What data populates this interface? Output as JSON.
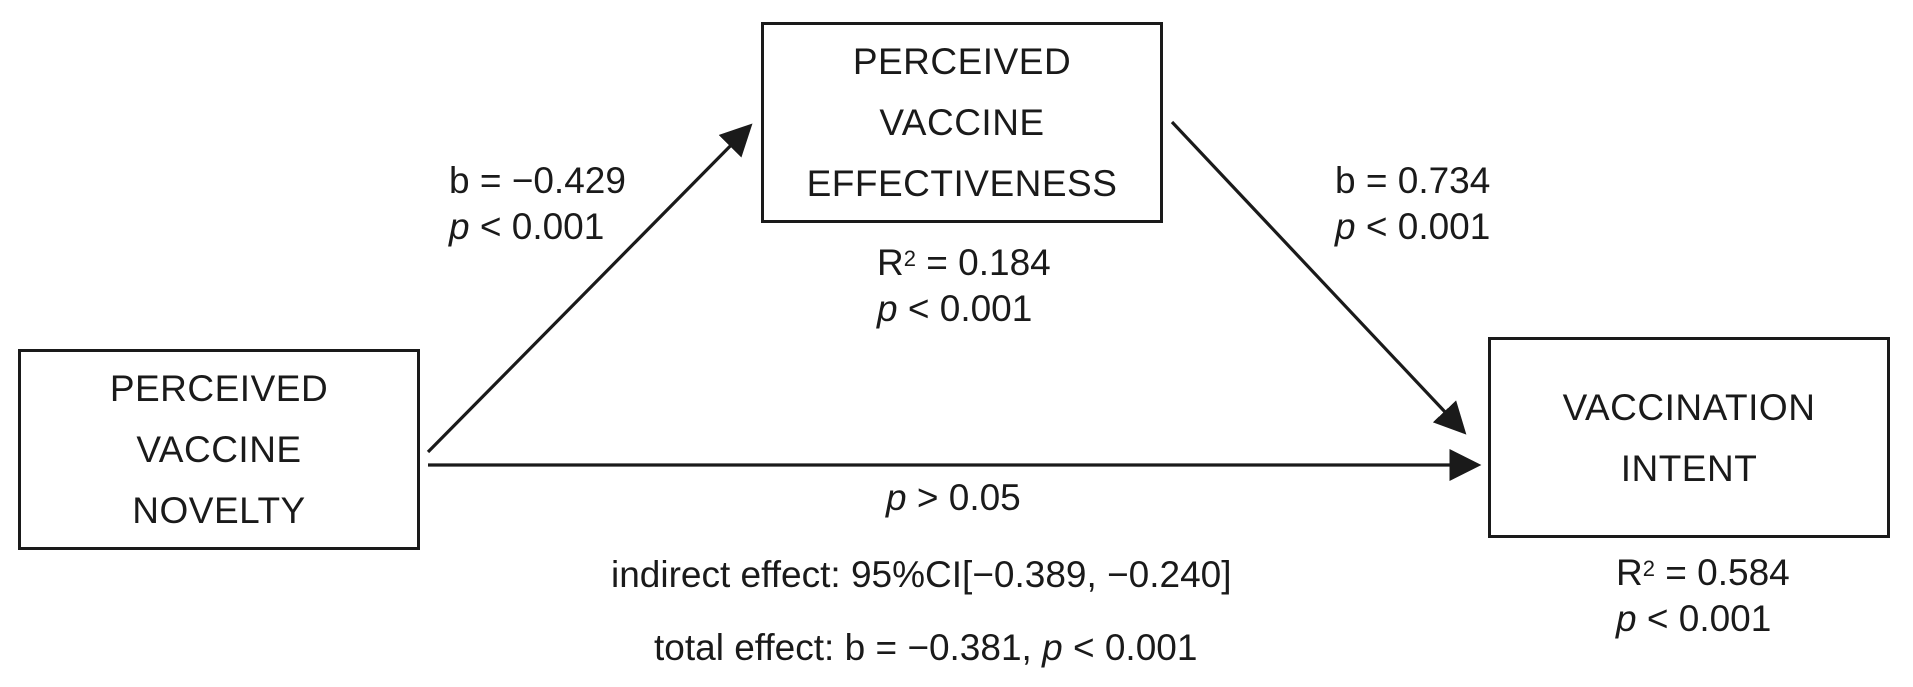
{
  "nodes": {
    "mediator": {
      "lines": [
        "PERCEIVED",
        "VACCINE",
        "EFFECTIVENESS"
      ]
    },
    "predictor": {
      "lines": [
        "PERCEIVED",
        "VACCINE",
        "NOVELTY"
      ]
    },
    "outcome": {
      "lines": [
        "VACCINATION",
        "INTENT"
      ]
    }
  },
  "paths": {
    "a": {
      "coef": "b = −0.429",
      "p_sym": "p",
      "p_val": " < 0.001"
    },
    "b": {
      "coef": "b = 0.734",
      "p_sym": "p",
      "p_val": " < 0.001"
    },
    "direct": {
      "p_sym": "p",
      "p_val": " > 0.05"
    }
  },
  "fit": {
    "mediator": {
      "r_base": "R",
      "r_sup": "2",
      "r_val": " = 0.184",
      "p_sym": "p",
      "p_val": " < 0.001"
    },
    "outcome": {
      "r_base": "R",
      "r_sup": "2",
      "r_val": " = 0.584",
      "p_sym": "p",
      "p_val": " < 0.001"
    }
  },
  "effects": {
    "indirect": "indirect effect: 95%CI[−0.389, −0.240]",
    "total_prefix": "total effect: b = −0.381, ",
    "total_p_sym": "p",
    "total_p_val": " < 0.001"
  },
  "colors": {
    "stroke": "#1a1a1a"
  }
}
